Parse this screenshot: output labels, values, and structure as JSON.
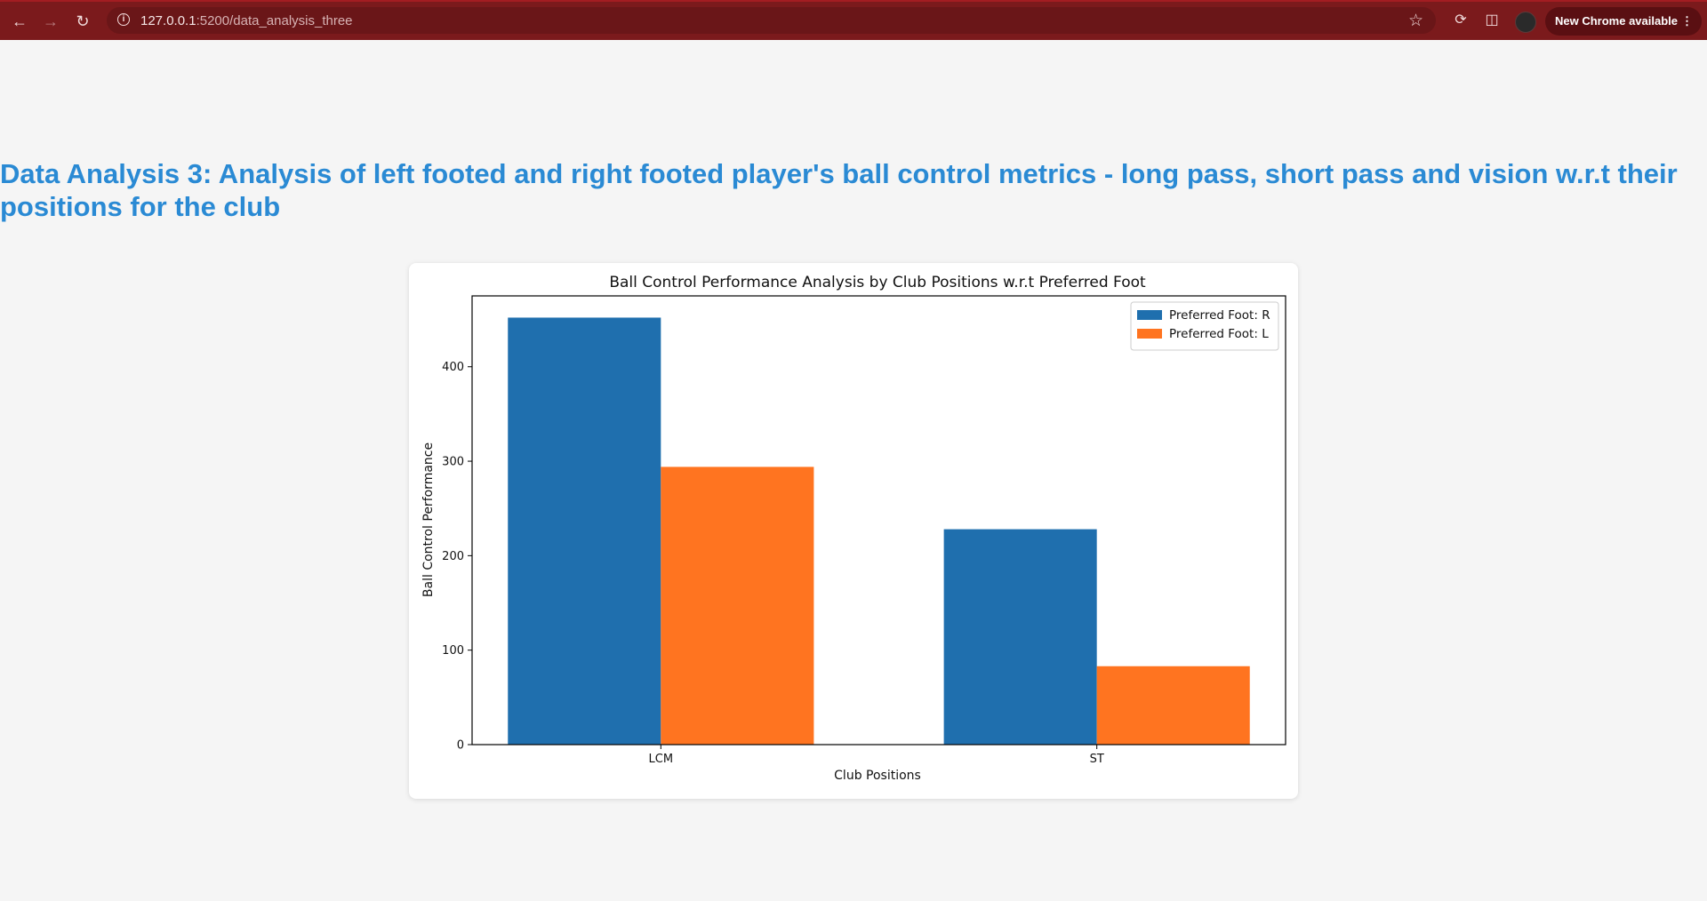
{
  "browser": {
    "url_host": "127.0.0.1",
    "url_path": ":5200/data_analysis_three",
    "update_label": "New Chrome available"
  },
  "page": {
    "heading": "Data Analysis 3: Analysis of left footed and right footed player's ball control metrics - long pass, short pass and vision w.r.t their positions for the club"
  },
  "chart_data": {
    "type": "bar",
    "title": "Ball Control Performance Analysis by Club Positions w.r.t Preferred Foot",
    "xlabel": "Club Positions",
    "ylabel": "Ball Control Performance",
    "categories": [
      "LCM",
      "ST"
    ],
    "series": [
      {
        "name": "Preferred Foot: R",
        "values": [
          452,
          228
        ],
        "color": "#1f6fae"
      },
      {
        "name": "Preferred Foot: L",
        "values": [
          294,
          83
        ],
        "color": "#ff7420"
      }
    ],
    "yticks": [
      0,
      100,
      200,
      300,
      400
    ],
    "ylim": [
      0,
      475
    ],
    "legend": "top-right",
    "grid": false
  }
}
